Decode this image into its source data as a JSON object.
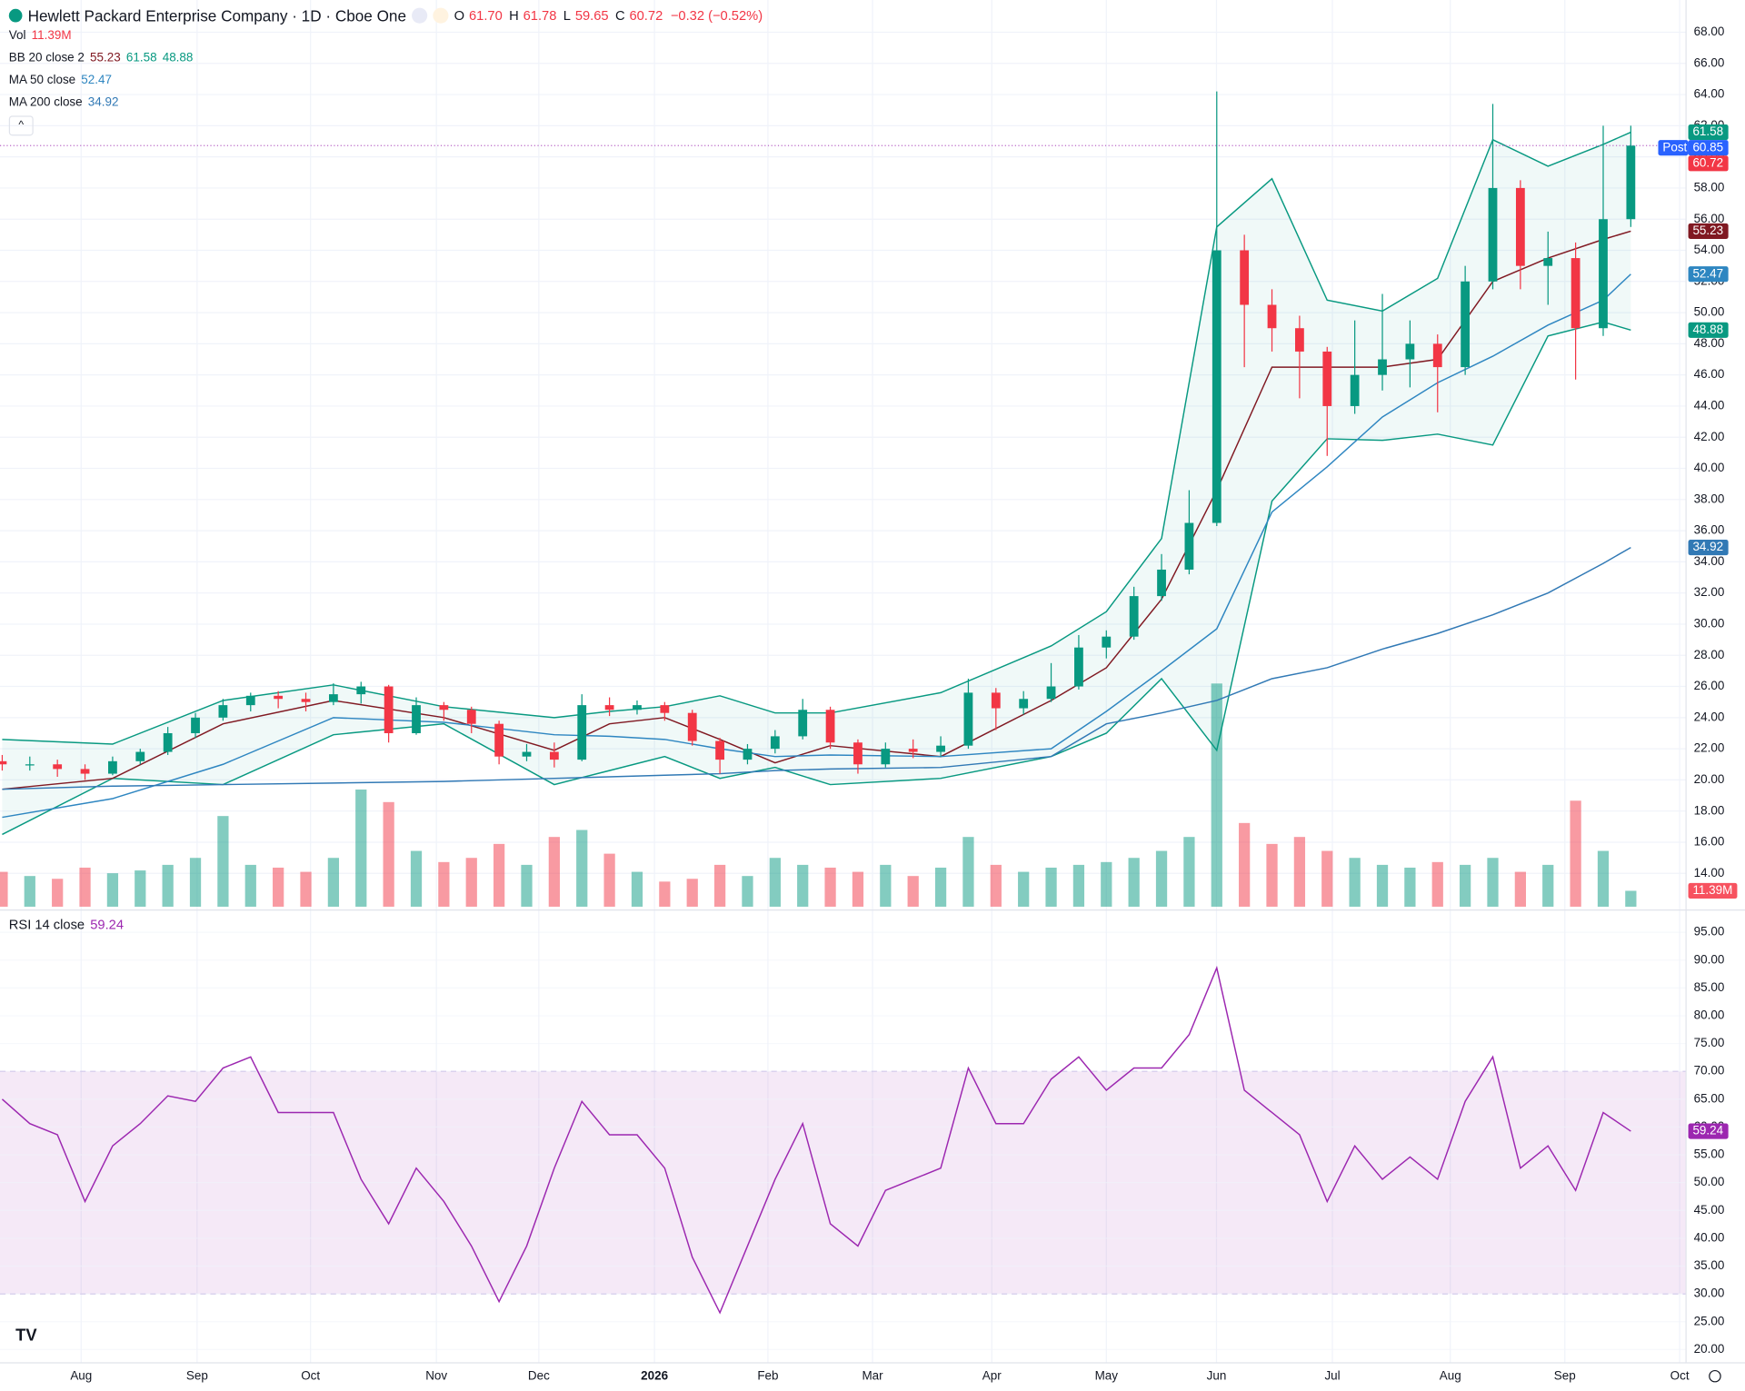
{
  "header": {
    "title": "Hewlett Packard Enterprise Company · 1D · Cboe One",
    "ohlc": [
      {
        "label": "O",
        "value": "61.70"
      },
      {
        "label": "H",
        "value": "61.78"
      },
      {
        "label": "L",
        "value": "59.65"
      },
      {
        "label": "C",
        "value": "60.72"
      }
    ],
    "change": "−0.32 (−0.52%)"
  },
  "chart_data": [
    {
      "type": "candlestick",
      "categories": [
        null,
        null,
        null,
        null,
        null,
        null,
        null,
        null,
        null,
        null,
        null,
        null,
        null,
        null,
        null,
        null,
        null,
        null,
        null,
        null,
        null,
        null,
        null,
        null,
        null,
        null,
        null,
        null,
        null,
        null,
        null,
        null,
        null,
        null,
        null,
        null,
        null,
        null,
        null,
        null,
        null,
        null,
        null,
        null,
        null,
        null,
        null,
        null,
        null,
        null,
        null,
        null,
        null,
        null,
        null,
        null,
        null,
        null,
        null,
        null
      ],
      "open": [
        21.2,
        21.0,
        21.0,
        20.7,
        20.4,
        21.2,
        21.8,
        23.0,
        24.0,
        24.8,
        25.4,
        25.2,
        25.0,
        25.5,
        26.0,
        23.0,
        24.8,
        24.5,
        23.6,
        21.5,
        21.8,
        21.3,
        24.8,
        24.5,
        24.8,
        24.3,
        22.5,
        21.3,
        22.0,
        22.8,
        24.5,
        22.4,
        21.0,
        22.0,
        21.8,
        22.2,
        25.6,
        24.6,
        25.2,
        26.0,
        28.5,
        29.2,
        31.8,
        33.5,
        36.5,
        54.0,
        50.5,
        49.0,
        47.5,
        44.0,
        46.0,
        47.0,
        48.0,
        46.5,
        52.0,
        58.0,
        53.0,
        53.5,
        49.0,
        56.0
      ],
      "high": [
        21.6,
        21.5,
        21.3,
        21.0,
        21.5,
        22.0,
        23.4,
        24.3,
        25.2,
        25.6,
        25.7,
        25.6,
        26.2,
        26.3,
        26.1,
        25.3,
        25.0,
        24.7,
        23.8,
        22.3,
        22.4,
        25.5,
        25.3,
        25.1,
        25.0,
        24.5,
        22.7,
        22.3,
        23.2,
        25.2,
        24.7,
        22.6,
        22.4,
        22.6,
        22.8,
        26.5,
        25.9,
        25.7,
        27.5,
        29.3,
        29.6,
        32.4,
        34.5,
        38.6,
        64.2,
        55.0,
        51.5,
        49.8,
        47.8,
        49.5,
        51.2,
        49.5,
        48.6,
        53.0,
        63.4,
        58.5,
        55.2,
        54.5,
        62.0,
        62.0
      ],
      "low": [
        20.6,
        20.6,
        20.2,
        20.0,
        20.3,
        21.0,
        21.6,
        22.7,
        23.8,
        24.4,
        24.6,
        24.4,
        24.8,
        24.9,
        22.4,
        22.9,
        23.8,
        23.0,
        21.0,
        21.2,
        20.8,
        21.2,
        24.1,
        24.2,
        23.8,
        22.2,
        20.4,
        21.0,
        21.7,
        22.6,
        22.0,
        20.4,
        20.8,
        21.4,
        21.5,
        22.0,
        23.2,
        24.2,
        25.0,
        25.8,
        27.8,
        29.0,
        31.5,
        33.2,
        36.3,
        46.5,
        47.5,
        44.5,
        40.8,
        43.5,
        45.0,
        45.2,
        43.6,
        46.0,
        51.5,
        51.5,
        50.5,
        45.7,
        48.5,
        55.5
      ],
      "close": [
        21.0,
        21.0,
        20.7,
        20.4,
        21.2,
        21.8,
        23.0,
        24.0,
        24.8,
        25.4,
        25.2,
        25.0,
        25.5,
        26.0,
        23.0,
        24.8,
        24.5,
        23.6,
        21.5,
        21.8,
        21.3,
        24.8,
        24.5,
        24.8,
        24.3,
        22.5,
        21.3,
        22.0,
        22.8,
        24.5,
        22.4,
        21.0,
        22.0,
        21.8,
        22.2,
        25.6,
        24.6,
        25.2,
        26.0,
        28.5,
        29.2,
        31.8,
        33.5,
        36.5,
        54.0,
        50.5,
        49.0,
        47.5,
        44.0,
        46.0,
        47.0,
        48.0,
        46.5,
        52.0,
        58.0,
        53.0,
        53.5,
        49.0,
        56.0,
        60.72
      ],
      "up_color": "#089981",
      "down_color": "#f23645",
      "xlim": [
        -0.08,
        61.0
      ],
      "xticks": [
        {
          "value": 2.86,
          "label": "Aug"
        },
        {
          "value": 7.06,
          "label": "Sep"
        },
        {
          "value": 11.17,
          "label": "Oct"
        },
        {
          "value": 15.73,
          "label": "Nov"
        },
        {
          "value": 19.44,
          "label": "Dec"
        },
        {
          "value": 23.63,
          "label": "2026"
        },
        {
          "value": 27.74,
          "label": "Feb"
        },
        {
          "value": 31.53,
          "label": "Mar"
        },
        {
          "value": 35.85,
          "label": "Apr"
        },
        {
          "value": 40.0,
          "label": "May"
        },
        {
          "value": 43.99,
          "label": "Jun"
        },
        {
          "value": 48.19,
          "label": "Jul"
        },
        {
          "value": 52.46,
          "label": "Aug"
        },
        {
          "value": 56.61,
          "label": "Sep"
        },
        {
          "value": 60.77,
          "label": "Oct"
        }
      ],
      "ylim": [
        11.86,
        70.07
      ],
      "yticks": [
        {
          "value": 14,
          "label": "14.00"
        },
        {
          "value": 16,
          "label": "16.00"
        },
        {
          "value": 18,
          "label": "18.00"
        },
        {
          "value": 20,
          "label": "20.00"
        },
        {
          "value": 22,
          "label": "22.00"
        },
        {
          "value": 24,
          "label": "24.00"
        },
        {
          "value": 26,
          "label": "26.00"
        },
        {
          "value": 28,
          "label": "28.00"
        },
        {
          "value": 30,
          "label": "30.00"
        },
        {
          "value": 32,
          "label": "32.00"
        },
        {
          "value": 34,
          "label": "34.00"
        },
        {
          "value": 36,
          "label": "36.00"
        },
        {
          "value": 38,
          "label": "38.00"
        },
        {
          "value": 40,
          "label": "40.00"
        },
        {
          "value": 42,
          "label": "42.00"
        },
        {
          "value": 44,
          "label": "44.00"
        },
        {
          "value": 46,
          "label": "46.00"
        },
        {
          "value": 48,
          "label": "48.00"
        },
        {
          "value": 50,
          "label": "50.00"
        },
        {
          "value": 52,
          "label": "52.00"
        },
        {
          "value": 54,
          "label": "54.00"
        },
        {
          "value": 56,
          "label": "56.00"
        },
        {
          "value": 58,
          "label": "58.00"
        },
        {
          "value": 60,
          "label": "60.00"
        },
        {
          "value": 62,
          "label": "62.00"
        },
        {
          "value": 64,
          "label": "64.00"
        },
        {
          "value": 66,
          "label": "66.00"
        },
        {
          "value": 68,
          "label": "68.00"
        }
      ],
      "grid": true,
      "volume": {
        "name": "Vol",
        "readout": "11.39M",
        "values": [
          25,
          22,
          20,
          28,
          24,
          26,
          30,
          35,
          65,
          30,
          28,
          25,
          35,
          84,
          75,
          40,
          32,
          35,
          45,
          30,
          50,
          55,
          38,
          25,
          18,
          20,
          30,
          22,
          35,
          30,
          28,
          25,
          30,
          22,
          28,
          50,
          30,
          25,
          28,
          30,
          32,
          35,
          40,
          50,
          160,
          60,
          45,
          50,
          40,
          35,
          30,
          28,
          32,
          30,
          35,
          25,
          30,
          76,
          40,
          11.39
        ],
        "ylim": [
          0,
          650
        ]
      },
      "bollinger": {
        "name": "BB 20 close 2",
        "readout": [
          "55.23",
          "61.58",
          "48.88"
        ],
        "color": "#089981",
        "basis_color": "#801922",
        "x": [
          0,
          4,
          8,
          12,
          16,
          20,
          22,
          24,
          26,
          28,
          30,
          34,
          38,
          40,
          42,
          44,
          46,
          48,
          50,
          52,
          54,
          56,
          58,
          59
        ],
        "basis": [
          19.4,
          20.1,
          23.6,
          25.1,
          24.0,
          21.9,
          23.6,
          24.0,
          22.6,
          21.1,
          22.2,
          21.5,
          25.1,
          27.2,
          31.6,
          38.6,
          46.5,
          46.5,
          46.5,
          47.0,
          52.0,
          53.5,
          54.7,
          55.23
        ],
        "upper": [
          22.6,
          22.3,
          25.1,
          26.1,
          24.7,
          24.0,
          24.4,
          24.7,
          25.4,
          24.3,
          24.3,
          25.6,
          28.6,
          30.8,
          35.5,
          55.5,
          58.6,
          50.8,
          50.1,
          52.2,
          61.1,
          59.4,
          60.8,
          61.58
        ],
        "lower": [
          16.5,
          20.1,
          19.7,
          22.9,
          23.6,
          19.7,
          20.6,
          21.5,
          20.1,
          20.8,
          19.7,
          20.1,
          21.5,
          23.0,
          26.5,
          21.9,
          37.9,
          41.9,
          41.8,
          42.2,
          41.5,
          48.5,
          49.4,
          48.88
        ]
      },
      "lines": [
        {
          "name": "MA 50 close",
          "readout": "52.47",
          "color": "#2e86c1",
          "x": [
            0,
            4,
            8,
            12,
            16,
            20,
            22,
            24,
            26,
            28,
            30,
            34,
            38,
            40,
            42,
            44,
            46,
            48,
            50,
            52,
            54,
            56,
            58,
            59
          ],
          "values": [
            17.6,
            18.8,
            21.0,
            24.0,
            23.7,
            22.9,
            22.8,
            22.6,
            22.0,
            21.5,
            21.6,
            21.5,
            22.0,
            24.4,
            27.0,
            29.7,
            37.2,
            40.1,
            43.3,
            45.5,
            47.2,
            49.2,
            50.8,
            52.47
          ]
        },
        {
          "name": "MA 200 close",
          "readout": "34.92",
          "color": "#3179b5",
          "x": [
            0,
            4,
            8,
            12,
            16,
            20,
            22,
            24,
            26,
            28,
            30,
            34,
            38,
            40,
            42,
            44,
            46,
            48,
            50,
            52,
            54,
            56,
            58,
            59
          ],
          "values": [
            19.4,
            19.6,
            19.7,
            19.8,
            19.9,
            20.1,
            20.2,
            20.3,
            20.4,
            20.6,
            20.7,
            20.8,
            21.5,
            23.6,
            24.3,
            25.1,
            26.5,
            27.2,
            28.4,
            29.4,
            30.6,
            32.0,
            33.9,
            34.92
          ]
        }
      ],
      "last_price_line": 60.72,
      "badges": [
        {
          "value": 61.58,
          "label": "61.58",
          "color": "#089981"
        },
        {
          "value": 60.85,
          "label": "60.85",
          "tag": "Post",
          "color": "#2962ff"
        },
        {
          "value": 60.72,
          "label": "60.72",
          "color": "#f23645"
        },
        {
          "value": 55.23,
          "label": "55.23",
          "color": "#801922"
        },
        {
          "value": 52.47,
          "label": "52.47",
          "color": "#2e86c1"
        },
        {
          "value": 48.88,
          "label": "48.88",
          "color": "#089981"
        },
        {
          "value": 34.92,
          "label": "34.92",
          "color": "#3179b5"
        }
      ],
      "volume_badge": {
        "value": 11.39,
        "label": "11.39M",
        "color": "#f7525f"
      }
    },
    {
      "type": "line",
      "name": "RSI 14 close",
      "readout": "59.24",
      "color": "#9c27b0",
      "categories": [
        null,
        null,
        null,
        null,
        null,
        null,
        null,
        null,
        null,
        null,
        null,
        null,
        null,
        null,
        null,
        null,
        null,
        null,
        null,
        null,
        null,
        null,
        null,
        null,
        null,
        null,
        null,
        null,
        null,
        null,
        null,
        null,
        null,
        null,
        null,
        null,
        null,
        null,
        null,
        null,
        null,
        null,
        null,
        null,
        null,
        null,
        null,
        null,
        null,
        null,
        null,
        null,
        null,
        null,
        null,
        null,
        null,
        null,
        null,
        null
      ],
      "values": [
        65,
        60.6,
        58.6,
        46.6,
        56.6,
        60.6,
        65.6,
        64.6,
        70.6,
        72.6,
        62.6,
        62.6,
        62.6,
        50.6,
        42.6,
        52.6,
        46.6,
        38.6,
        28.6,
        38.6,
        52.6,
        64.6,
        58.6,
        58.6,
        52.6,
        36.6,
        26.6,
        38.6,
        50.6,
        60.6,
        42.6,
        38.6,
        48.6,
        50.6,
        52.6,
        70.6,
        60.6,
        60.6,
        68.6,
        72.6,
        66.6,
        70.6,
        70.6,
        76.6,
        88.6,
        66.6,
        62.6,
        58.6,
        46.6,
        56.6,
        50.6,
        54.6,
        50.6,
        64.6,
        72.6,
        52.6,
        56.6,
        48.6,
        62.6,
        59.24
      ],
      "ylim": [
        17.6,
        98.6
      ],
      "yticks": [
        {
          "value": 20,
          "label": "20.00"
        },
        {
          "value": 25,
          "label": "25.00"
        },
        {
          "value": 30,
          "label": "30.00"
        },
        {
          "value": 35,
          "label": "35.00"
        },
        {
          "value": 40,
          "label": "40.00"
        },
        {
          "value": 45,
          "label": "45.00"
        },
        {
          "value": 50,
          "label": "50.00"
        },
        {
          "value": 55,
          "label": "55.00"
        },
        {
          "value": 60,
          "label": "60.00"
        },
        {
          "value": 65,
          "label": "65.00"
        },
        {
          "value": 70,
          "label": "70.00"
        },
        {
          "value": 75,
          "label": "75.00"
        },
        {
          "value": 80,
          "label": "80.00"
        },
        {
          "value": 85,
          "label": "85.00"
        },
        {
          "value": 90,
          "label": "90.00"
        },
        {
          "value": 95,
          "label": "95.00"
        }
      ],
      "band": [
        30,
        70
      ],
      "badge": {
        "value": 59.24,
        "label": "59.24",
        "color": "#9c27b0"
      }
    }
  ]
}
